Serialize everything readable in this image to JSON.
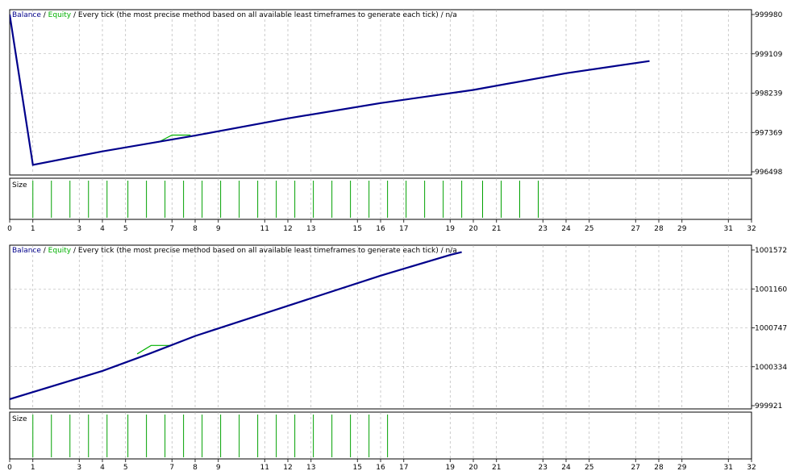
{
  "chart_data": [
    {
      "type": "line",
      "header": {
        "balance_label": "Balance",
        "sep1": " / ",
        "equity_label": "Equity",
        "rest": " / Every tick (the most precise method based on all available least timeframes to generate each tick) / n/a"
      },
      "colors": {
        "balance": "#00008b",
        "equity": "#00b000",
        "size": "#00a000",
        "grid": "#a9a9a9",
        "frame": "#000000"
      },
      "x": [
        0,
        1,
        3,
        4,
        5,
        7,
        8,
        9,
        11,
        12,
        13,
        15,
        16,
        17,
        19,
        20,
        21,
        23,
        24,
        25,
        27,
        28,
        29,
        31,
        32
      ],
      "yticks": [
        999980,
        999109,
        998239,
        997369,
        996498
      ],
      "ylim": [
        996498,
        999980
      ],
      "balance_points": [
        [
          0,
          999980
        ],
        [
          1.0,
          996650
        ],
        [
          4.0,
          996950
        ],
        [
          8.0,
          997300
        ],
        [
          12.0,
          997680
        ],
        [
          16.0,
          998020
        ],
        [
          20.0,
          998310
        ],
        [
          24.0,
          998680
        ],
        [
          27.6,
          998950
        ]
      ],
      "equity_points": [
        [
          6.4,
          997150
        ],
        [
          7.0,
          997310
        ],
        [
          7.8,
          997310
        ]
      ],
      "size_panel": {
        "label": "Size",
        "bar_x": [
          1.0,
          1.8,
          2.6,
          3.4,
          4.2,
          5.1,
          5.9,
          6.7,
          7.5,
          8.3,
          9.1,
          9.9,
          10.7,
          11.5,
          12.3,
          13.1,
          13.9,
          14.7,
          15.5,
          16.3,
          17.1,
          17.9,
          18.7,
          19.5,
          20.4,
          21.2,
          22.0,
          22.8
        ]
      }
    },
    {
      "type": "line",
      "header": {
        "balance_label": "Balance",
        "sep1": " / ",
        "equity_label": "Equity",
        "rest": " / Every tick (the most precise method based on all available least timeframes to generate each tick) / n/a"
      },
      "colors": {
        "balance": "#00008b",
        "equity": "#00b000",
        "size": "#00a000",
        "grid": "#a9a9a9",
        "frame": "#000000"
      },
      "x": [
        0,
        1,
        3,
        4,
        5,
        7,
        8,
        9,
        11,
        12,
        13,
        15,
        16,
        17,
        19,
        20,
        21,
        23,
        24,
        25,
        27,
        28,
        29,
        31,
        32
      ],
      "yticks": [
        "1001572",
        "1001160",
        "1000747",
        "1000334",
        "999921"
      ],
      "ylim": [
        999921,
        1001572
      ],
      "balance_points": [
        [
          0,
          999990
        ],
        [
          4.0,
          1000290
        ],
        [
          6.0,
          1000470
        ],
        [
          8.0,
          1000660
        ],
        [
          12.0,
          1000980
        ],
        [
          16.0,
          1001300
        ],
        [
          19.0,
          1001520
        ],
        [
          19.5,
          1001550
        ]
      ],
      "equity_points": [
        [
          5.5,
          1000470
        ],
        [
          6.1,
          1000560
        ],
        [
          7.0,
          1000560
        ]
      ],
      "size_panel": {
        "label": "Size",
        "bar_x": [
          1.0,
          1.8,
          2.6,
          3.4,
          4.2,
          5.1,
          5.9,
          6.7,
          7.5,
          8.3,
          9.1,
          9.9,
          10.7,
          11.5,
          12.3,
          13.1,
          13.9,
          14.7,
          15.5,
          16.3
        ]
      }
    }
  ]
}
